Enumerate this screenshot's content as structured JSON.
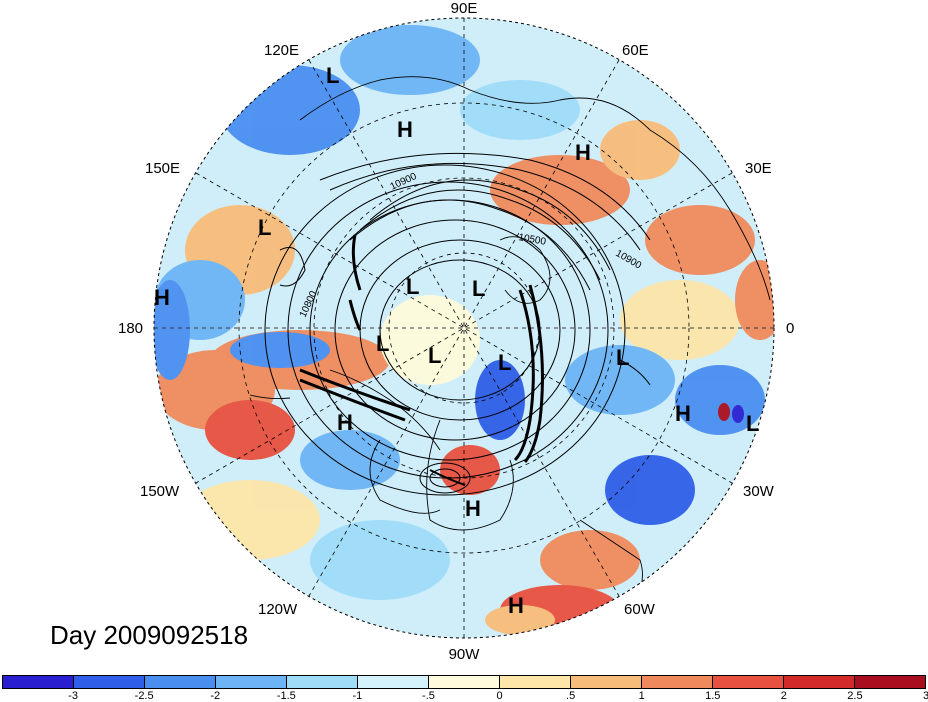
{
  "date_label": "Day 2009092518",
  "longitude_labels": {
    "top": "90E",
    "top_right": "60E",
    "right_upper": "30E",
    "right": "0",
    "right_lower": "30W",
    "bottom_right": "60W",
    "bottom": "90W",
    "bottom_left": "120W",
    "left_lower": "150W",
    "left": "180",
    "left_upper": "150E",
    "top_left": "120E"
  },
  "pressure_centers": [
    {
      "type": "L"
    },
    {
      "type": "H"
    },
    {
      "type": "H"
    },
    {
      "type": "L"
    },
    {
      "type": "H"
    },
    {
      "type": "L"
    },
    {
      "type": "L"
    },
    {
      "type": "L"
    },
    {
      "type": "L"
    },
    {
      "type": "L"
    },
    {
      "type": "L"
    },
    {
      "type": "H"
    },
    {
      "type": "H"
    },
    {
      "type": "L"
    },
    {
      "type": "H"
    },
    {
      "type": "H"
    }
  ],
  "contour_labels": [
    "10900",
    "10500",
    "10900",
    "10800"
  ],
  "colorbar": {
    "ticks": [
      "-3",
      "-2.5",
      "-2",
      "-1.5",
      "-1",
      "-.5",
      "0",
      ".5",
      "1",
      "1.5",
      "2",
      "2.5",
      "3"
    ],
    "colors": [
      "#2a1fd0",
      "#2f5ee8",
      "#4a8ef0",
      "#6cb4f5",
      "#9fdcf8",
      "#d4f2fb",
      "#fefbdc",
      "#fde6a8",
      "#f8bc7a",
      "#f08a5c",
      "#e8503f",
      "#d22a2a",
      "#a80e1e"
    ]
  }
}
